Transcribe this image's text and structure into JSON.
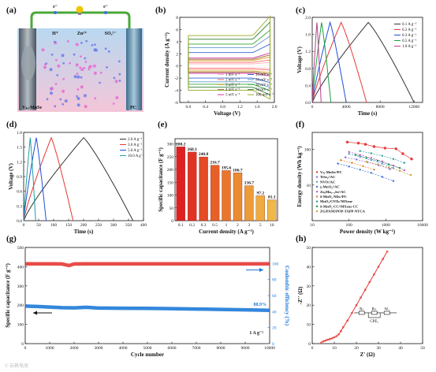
{
  "panel_labels": [
    "(a)",
    "(b)",
    "(c)",
    "(d)",
    "(e)",
    "(f)",
    "(g)",
    "(h)"
  ],
  "schematic": {
    "electron": "e⁻",
    "h_ion": "H⁺",
    "zn_ion": "Zn²⁺",
    "so4_ion": "SO₄²⁻",
    "left_electrode": "Vₛₑ-MnSe",
    "right_electrode": "PC",
    "colors": {
      "bg_top": "#b8d8f0",
      "bg_bottom": "#f4c6d8",
      "wire": "#4aa83a",
      "bulb": "#f5c400",
      "ion_pink": "#e96bd1",
      "ion_blue": "#6b7de9"
    }
  },
  "watermark": "© 云帆电池",
  "chart_data": [
    {
      "id": "b",
      "type": "line",
      "xlabel": "Voltage (V)",
      "ylabel": "Current density (A g⁻¹)",
      "xlim": [
        -0.2,
        2.0
      ],
      "ylim": [
        -6,
        8
      ],
      "xticks": [
        "0.0",
        "0.4",
        "0.8",
        "1.2",
        "1.6",
        "2.0"
      ],
      "yticks": [
        "-6",
        "-4",
        "-2",
        "0",
        "2",
        "4",
        "6",
        "8"
      ],
      "legend_position": "bottom-right",
      "series": [
        {
          "name": "1 mV s⁻¹",
          "color": "#ffb3b3",
          "top": 0.35,
          "bottom": -0.3
        },
        {
          "name": "2 mV s⁻¹",
          "color": "#ff6666",
          "top": 0.6,
          "bottom": -0.5
        },
        {
          "name": "3 mV s⁻¹",
          "color": "#d4a017",
          "top": 0.9,
          "bottom": -0.8
        },
        {
          "name": "4 mV s⁻¹",
          "color": "#996633",
          "top": 1.1,
          "bottom": -1.0
        },
        {
          "name": "5 mV s⁻¹",
          "color": "#cc3399",
          "top": 1.3,
          "bottom": -1.2
        },
        {
          "name": "10 mV s⁻¹",
          "color": "#3366cc",
          "top": 2.2,
          "bottom": -2.0
        },
        {
          "name": "20 mV s⁻¹",
          "color": "#6699cc",
          "top": 3.0,
          "bottom": -2.6
        },
        {
          "name": "30 mV s⁻¹",
          "color": "#33aa33",
          "top": 3.6,
          "bottom": -3.0
        },
        {
          "name": "50 mV s⁻¹",
          "color": "#2e7d32",
          "top": 4.4,
          "bottom": -3.5
        },
        {
          "name": "100 mV s⁻¹",
          "color": "#99aa22",
          "top": 5.0,
          "bottom": -4.0
        }
      ]
    },
    {
      "id": "c",
      "type": "line",
      "xlabel": "Time (s)",
      "ylabel": "Voltage (V)",
      "xlim": [
        0,
        13000
      ],
      "ylim": [
        0,
        2.0
      ],
      "xticks": [
        "0",
        "4000",
        "8000",
        "12000"
      ],
      "xtick_values": [
        0,
        4000,
        8000,
        12000
      ],
      "yticks": [
        "0.0",
        "0.4",
        "0.8",
        "1.2",
        "1.6",
        "2.0"
      ],
      "legend_position": "top-right",
      "series": [
        {
          "name": "0.1 A g⁻¹",
          "color": "#333333",
          "t_charge": 6600,
          "t_total": 12000
        },
        {
          "name": "0.2 A g⁻¹",
          "color": "#e53935",
          "t_charge": 3400,
          "t_total": 6400
        },
        {
          "name": "0.3 A g⁻¹",
          "color": "#1e4fd8",
          "t_charge": 2100,
          "t_total": 4000
        },
        {
          "name": "0.5 A g⁻¹",
          "color": "#1aa040",
          "t_charge": 1100,
          "t_total": 2200
        },
        {
          "name": "1.0 A g⁻¹",
          "color": "#b8408a",
          "t_charge": 550,
          "t_total": 1050
        }
      ]
    },
    {
      "id": "d",
      "type": "line",
      "xlabel": "Time (s)",
      "ylabel": "Voltage (V)",
      "xlim": [
        0,
        400
      ],
      "ylim": [
        0,
        1.8
      ],
      "xticks": [
        "0",
        "50",
        "100",
        "150",
        "200",
        "250",
        "300",
        "350",
        "400"
      ],
      "yticks": [
        "0.0",
        "0.3",
        "0.6",
        "0.9",
        "1.2",
        "1.5",
        "1.8"
      ],
      "legend_position": "top-right",
      "series": [
        {
          "name": "2.0 A g⁻¹",
          "color": "#333333",
          "t_charge": 200,
          "t_total": 365
        },
        {
          "name": "3.0 A g⁻¹",
          "color": "#e53935",
          "t_charge": 92,
          "t_total": 165
        },
        {
          "name": "5.0 A g⁻¹",
          "color": "#1e4fd8",
          "t_charge": 42,
          "t_total": 75
        },
        {
          "name": "10.0 A g⁻¹",
          "color": "#1aa0a0",
          "t_charge": 22,
          "t_total": 40
        }
      ]
    },
    {
      "id": "e",
      "type": "bar",
      "xlabel": "Current density (A g⁻¹)",
      "ylabel": "Specific capacitance (F g⁻¹)",
      "ylim": [
        0,
        320
      ],
      "yticks": [
        "0",
        "50",
        "100",
        "150",
        "200",
        "250",
        "300"
      ],
      "categories": [
        "0.1",
        "0.2",
        "0.3",
        "0.5",
        "1",
        "2",
        "3",
        "5",
        "10"
      ],
      "values": [
        288.2,
        268.1,
        248.8,
        216.7,
        195.6,
        186.7,
        136.7,
        97.2,
        81.1
      ],
      "colors": [
        "#e02020",
        "#e23322",
        "#e44a26",
        "#e66129",
        "#e8772d",
        "#ea8b32",
        "#ec9c38",
        "#eeab40",
        "#f0b848"
      ]
    },
    {
      "id": "f",
      "type": "scatter",
      "xlabel": "Power density (W kg⁻¹)",
      "ylabel": "Energy density (Wh kg⁻¹)",
      "scale": "log-log",
      "xlim": [
        10,
        10000
      ],
      "ylim": [
        1,
        300
      ],
      "xticks": [
        "10",
        "100",
        "1000",
        "10000"
      ],
      "yticks": [
        "10",
        "100"
      ],
      "legend_position": "bottom-left",
      "series": [
        {
          "name": "Vₛₑ-MnSe//PC",
          "color": "#e53935",
          "x": [
            90,
            180,
            280,
            480,
            950,
            1900,
            2900,
            5000
          ],
          "y": [
            160,
            150,
            139,
            120,
            109,
            104,
            76,
            54
          ]
        },
        {
          "name": "TiSe₂//AC",
          "color": "#8e6bd8",
          "x": [
            80,
            160,
            320,
            640,
            1300
          ],
          "y": [
            60,
            52,
            44,
            36,
            28
          ]
        },
        {
          "name": "NVO//AC",
          "color": "#5aa0d8",
          "x": [
            100,
            200,
            400,
            800,
            1600
          ],
          "y": [
            75,
            62,
            50,
            40,
            30
          ]
        },
        {
          "name": "γ-MnO₂//AC",
          "color": "#3f6fd8",
          "x": [
            50,
            100,
            200,
            400,
            800,
            1600
          ],
          "y": [
            40,
            33,
            27,
            22,
            17,
            13
          ]
        },
        {
          "name": "ZnₓMn₁₋ₓSe//AC",
          "color": "#c05ab0",
          "x": [
            100,
            200,
            400,
            800,
            1600,
            3200
          ],
          "y": [
            85,
            70,
            58,
            46,
            35,
            26
          ]
        },
        {
          "name": "δ-MnO₂ NDs//PC",
          "color": "#e57a2a",
          "x": [
            60,
            120,
            240,
            480
          ],
          "y": [
            50,
            42,
            34,
            27
          ]
        },
        {
          "name": "MnO₂/CNTs//MXene",
          "color": "#2aa0a0",
          "x": [
            200,
            400,
            800,
            1600,
            3200
          ],
          "y": [
            90,
            78,
            66,
            54,
            42
          ]
        },
        {
          "name": "δ-MnO₂ CC//MXene CC",
          "color": "#1a8a5a",
          "x": [
            150,
            300,
            600,
            1200,
            2400
          ],
          "y": [
            70,
            58,
            48,
            38,
            30
          ]
        },
        {
          "name": "ZG/PANI/POP-TAPP-NTCA",
          "color": "#d0a030",
          "x": [
            300,
            600,
            1200,
            2400,
            4800
          ],
          "y": [
            45,
            38,
            31,
            25,
            19
          ]
        }
      ]
    },
    {
      "id": "g",
      "type": "scatter",
      "xlabel": "Cycle number",
      "ylabel": "Specific capacitance (F g⁻¹)",
      "y2label": "Coulombic efficiency (%)",
      "xlim": [
        0,
        10000
      ],
      "ylim": [
        0,
        500
      ],
      "y2lim": [
        0,
        120
      ],
      "xticks": [
        "0",
        "1000",
        "2000",
        "3000",
        "4000",
        "5000",
        "6000",
        "7000",
        "8000",
        "9000",
        "10000"
      ],
      "yticks": [
        "0",
        "100",
        "200",
        "300",
        "400",
        "500"
      ],
      "y2ticks": [
        "0",
        "20",
        "40",
        "60",
        "80",
        "100"
      ],
      "annotations": {
        "retention": "88.9%",
        "current": "1 A g⁻¹"
      },
      "series": [
        {
          "name": "Specific capacitance",
          "color": "#1e7ad8",
          "x": [
            0,
            500,
            1000,
            1500,
            2000,
            2500,
            3000,
            4000,
            5000,
            6000,
            7000,
            8000,
            9000,
            10000
          ],
          "y": [
            195,
            193,
            190,
            187,
            186,
            189,
            185,
            184,
            183,
            182,
            180,
            178,
            176,
            173
          ]
        },
        {
          "name": "Coulombic efficiency",
          "color": "#e53935",
          "x": [
            0,
            500,
            1000,
            1500,
            1800,
            2000,
            2500,
            3000,
            4000,
            5000,
            6000,
            7000,
            8000,
            9000,
            10000
          ],
          "y": [
            99.5,
            99.5,
            99.5,
            99.4,
            97.5,
            99.4,
            99.5,
            99.5,
            99.5,
            99.5,
            99.5,
            99.5,
            99.5,
            99.5,
            99.5
          ]
        }
      ]
    },
    {
      "id": "h",
      "type": "line",
      "xlabel": "Z' (Ω)",
      "ylabel": "-Z'' (Ω)",
      "xlim": [
        0,
        50
      ],
      "ylim": [
        0,
        50
      ],
      "xticks": [
        "0",
        "10",
        "20",
        "30",
        "40",
        "50"
      ],
      "yticks": [
        "0",
        "10",
        "20",
        "30",
        "40",
        "50"
      ],
      "circuit_labels": [
        "Rₛ",
        "Rₜₜ",
        "Wₒ",
        "CPE₁"
      ],
      "series": [
        {
          "name": "EIS",
          "color": "#e53935",
          "x": [
            4,
            5,
            6,
            7,
            8,
            9,
            10,
            11,
            12,
            13,
            14,
            16,
            18,
            20,
            22,
            24,
            26,
            28,
            30,
            32,
            34
          ],
          "y": [
            0.5,
            1.2,
            1.6,
            2.0,
            2.4,
            2.8,
            3.3,
            3.9,
            4.8,
            6.5,
            8.5,
            12,
            16,
            20,
            24,
            28,
            32,
            36,
            40,
            44,
            48
          ]
        }
      ]
    }
  ]
}
